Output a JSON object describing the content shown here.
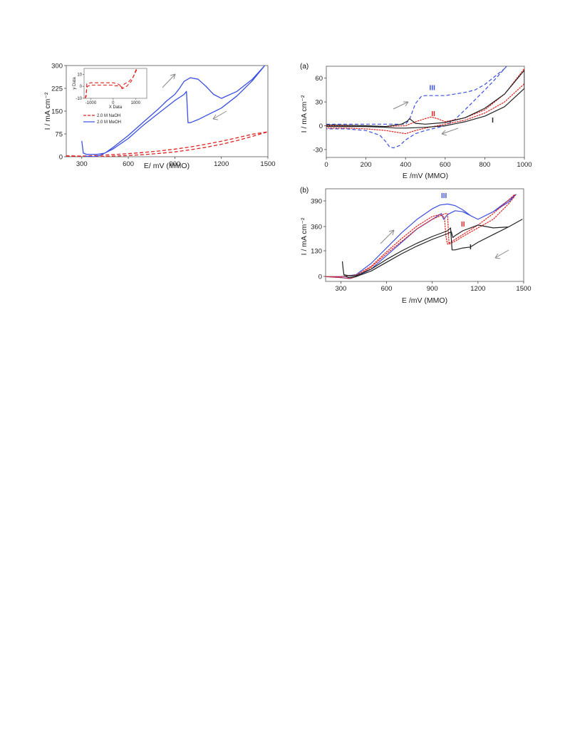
{
  "colors": {
    "blue": "#3b4fe0",
    "red": "#e0201f",
    "black": "#222222",
    "arrow": "#888888"
  },
  "chart_data": [
    {
      "type": "line",
      "xlabel": "E/ mV (MMO)",
      "ylabel": "I / mA cm⁻²",
      "xlim": [
        200,
        1500
      ],
      "ylim": [
        0,
        300
      ],
      "xticks": [
        300,
        600,
        900,
        1200,
        1500
      ],
      "yticks": [
        0,
        75,
        150,
        225,
        300
      ],
      "legend": {
        "position": "left",
        "entries": [
          "2.0 M NaOH",
          "2.0 M MeOH"
        ]
      },
      "series": [
        {
          "name": "2.0 M NaOH",
          "color": "#e0201f",
          "dash": "dashed",
          "x": [
            200,
            300,
            400,
            500,
            600,
            700,
            800,
            900,
            1000,
            1100,
            1200,
            1300,
            1400,
            1500,
            1400,
            1300,
            1200,
            1100,
            1000,
            900,
            800,
            700,
            600,
            500,
            400,
            300,
            200
          ],
          "y": [
            2,
            1,
            0,
            2,
            4,
            7,
            11,
            16,
            23,
            31,
            41,
            53,
            67,
            82,
            74,
            62,
            51,
            41,
            32,
            25,
            19,
            14,
            10,
            7,
            4,
            2,
            3
          ]
        },
        {
          "name": "2.0 M MeOH",
          "color": "#3b4fe0",
          "dash": "solid",
          "x": [
            300,
            310,
            330,
            400,
            450,
            500,
            600,
            700,
            800,
            850,
            900,
            930,
            960,
            1000,
            1050,
            1100,
            1150,
            1200,
            1300,
            1400,
            1480,
            1480,
            1400,
            1300,
            1200,
            1100,
            1050,
            1000,
            985,
            975,
            960,
            900,
            800,
            700,
            600,
            500,
            420,
            380,
            320
          ],
          "y": [
            52,
            12,
            8,
            8,
            12,
            30,
            70,
            115,
            160,
            185,
            205,
            225,
            248,
            260,
            255,
            232,
            205,
            192,
            215,
            255,
            300,
            300,
            250,
            200,
            160,
            135,
            122,
            112,
            112,
            215,
            205,
            185,
            145,
            105,
            60,
            25,
            5,
            0,
            2
          ]
        }
      ],
      "inset": {
        "xlabel": "X Data",
        "ylabel": "y Data",
        "xlim": [
          -1300,
          1500
        ],
        "ylim": [
          -10,
          15
        ],
        "xticks": [
          -1000,
          0,
          1000
        ],
        "yticks": [
          -10,
          0,
          10
        ],
        "series": [
          {
            "color": "#e0201f",
            "dash": "dashed",
            "x": [
              -1250,
              -1200,
              -1180,
              -1000,
              -600,
              -200,
              0,
              100,
              200,
              300,
              400,
              500,
              600,
              700,
              800,
              900,
              1000,
              1050
            ],
            "y": [
              -10,
              -8,
              2,
              3,
              3,
              3,
              3,
              2.5,
              2,
              1,
              -2,
              -1,
              0,
              2,
              4,
              8,
              13,
              15
            ]
          },
          {
            "color": "#e0201f",
            "dash": "dashed",
            "x": [
              1050,
              900,
              800,
              700,
              600,
              500,
              400,
              300,
              200,
              100,
              0,
              -200,
              -600,
              -1000,
              -1150,
              -1200,
              -1250
            ],
            "y": [
              14,
              8,
              6,
              4,
              3,
              2,
              -1,
              0.5,
              0.5,
              0.5,
              1,
              1,
              1,
              1,
              0,
              -5,
              -10
            ]
          }
        ]
      }
    },
    {
      "type": "line",
      "panel_label": "(a)",
      "xlabel": "E /mV (MMO)",
      "ylabel": "I / mA cm⁻²",
      "xlim": [
        0,
        1000
      ],
      "ylim": [
        -40,
        75
      ],
      "xticks": [
        0,
        200,
        400,
        600,
        800,
        1000
      ],
      "yticks": [
        -30,
        0,
        30,
        60
      ],
      "curve_labels": [
        {
          "text": "III",
          "color": "#3b4fe0",
          "x": 520,
          "y": 45
        },
        {
          "text": "II",
          "color": "#e0201f",
          "x": 530,
          "y": 12
        },
        {
          "text": "I",
          "color": "#222222",
          "x": 835,
          "y": 4
        }
      ],
      "series": [
        {
          "name": "III",
          "color": "#3b4fe0",
          "dash": "dashed",
          "x": [
            0,
            200,
            350,
            400,
            420,
            450,
            480,
            500,
            600,
            700,
            750,
            800,
            850,
            900,
            920,
            900,
            850,
            800,
            700,
            650,
            600,
            550,
            500,
            450,
            400,
            370,
            340,
            320,
            300,
            270,
            200,
            100,
            0
          ],
          "y": [
            2,
            2,
            2,
            2,
            8,
            28,
            37,
            38,
            38,
            42,
            45,
            52,
            62,
            72,
            78,
            72,
            58,
            45,
            20,
            8,
            0,
            -3,
            -6,
            -10,
            -18,
            -25,
            -28,
            -27,
            -20,
            -12,
            -6,
            -4,
            -4
          ]
        },
        {
          "name": "II",
          "color": "#e0201f",
          "dash": "dotted",
          "x": [
            0,
            200,
            300,
            400,
            450,
            500,
            530,
            560,
            600,
            700,
            800,
            900,
            1000,
            1000,
            900,
            800,
            700,
            600,
            500,
            450,
            400,
            350,
            300,
            200,
            100,
            0
          ],
          "y": [
            0,
            -1,
            -1,
            0,
            5,
            9,
            11,
            9,
            5,
            10,
            20,
            40,
            72,
            53,
            30,
            16,
            7,
            2,
            -3,
            -6,
            -10,
            -8,
            -6,
            -4,
            -3,
            -3
          ]
        },
        {
          "name": "I",
          "color": "#222222",
          "dash": "solid",
          "x": [
            0,
            200,
            300,
            380,
            410,
            420,
            430,
            450,
            500,
            600,
            700,
            800,
            900,
            1000,
            1000,
            900,
            800,
            700,
            600,
            500,
            400,
            350,
            300,
            200,
            0
          ],
          "y": [
            1,
            0,
            -1,
            2,
            6,
            9,
            7,
            3,
            2,
            4,
            10,
            22,
            40,
            70,
            47,
            24,
            12,
            5,
            0,
            -2,
            -3,
            -3,
            -2,
            -1,
            -1
          ]
        }
      ]
    },
    {
      "type": "line",
      "panel_label": "(b)",
      "xlabel": "E /mV (MMO)",
      "ylabel": "I / mA cm⁻²",
      "xlim": [
        200,
        1500
      ],
      "ylim": [
        -25,
        460
      ],
      "xticks": [
        300,
        600,
        900,
        1200,
        1500
      ],
      "ytick_labels": [
        "0",
        "130",
        "360",
        "390"
      ],
      "curve_labels": [
        {
          "text": "III",
          "color": "#3b4fe0"
        },
        {
          "text": "II",
          "color": "#e0201f"
        },
        {
          "text": "I",
          "color": "#222222"
        }
      ],
      "series": [
        {
          "name": "III",
          "color": "#3b4fe0",
          "dash": "solid",
          "x": [
            200,
            300,
            400,
            500,
            600,
            700,
            800,
            900,
            950,
            1000,
            1050,
            1100,
            1150,
            1200,
            1300,
            1400,
            1450,
            1450,
            1400,
            1300,
            1200,
            1100,
            1050,
            1000,
            975,
            960,
            900,
            800,
            700,
            600,
            500,
            400,
            360,
            300,
            200
          ],
          "y": [
            0,
            0,
            10,
            70,
            150,
            230,
            300,
            355,
            375,
            380,
            372,
            350,
            320,
            300,
            340,
            400,
            430,
            430,
            390,
            340,
            300,
            340,
            345,
            325,
            300,
            330,
            300,
            250,
            180,
            110,
            40,
            0,
            -10,
            -5,
            0
          ]
        },
        {
          "name": "II",
          "color": "#e0201f",
          "dash": "dotted",
          "x": [
            200,
            300,
            400,
            500,
            600,
            700,
            800,
            900,
            950,
            980,
            990,
            1000,
            1050,
            1100,
            1200,
            1300,
            1400,
            1440,
            1440,
            1400,
            1300,
            1200,
            1100,
            1050,
            1010,
            1000,
            985,
            900,
            800,
            700,
            600,
            500,
            400,
            360,
            300,
            200
          ],
          "y": [
            0,
            0,
            8,
            55,
            130,
            200,
            265,
            315,
            325,
            310,
            210,
            170,
            195,
            220,
            270,
            330,
            400,
            430,
            420,
            380,
            300,
            255,
            210,
            185,
            170,
            330,
            330,
            300,
            250,
            185,
            120,
            50,
            0,
            -10,
            -5,
            0
          ]
        },
        {
          "name": "I",
          "color": "#222222",
          "dash": "solid",
          "x": [
            310,
            315,
            320,
            350,
            400,
            500,
            600,
            700,
            800,
            900,
            1000,
            1020,
            1030,
            1050,
            1100,
            1150,
            1200,
            1300,
            1400,
            1490,
            1490,
            1400,
            1300,
            1200,
            1100,
            1050,
            1035,
            1025,
            1000,
            900,
            800,
            700,
            600,
            500,
            400,
            350,
            320
          ],
          "y": [
            80,
            40,
            10,
            5,
            5,
            40,
            90,
            135,
            175,
            210,
            240,
            255,
            140,
            140,
            150,
            155,
            180,
            220,
            260,
            300,
            300,
            260,
            255,
            270,
            240,
            215,
            205,
            235,
            225,
            195,
            160,
            120,
            75,
            30,
            0,
            -5,
            5
          ]
        }
      ]
    }
  ]
}
